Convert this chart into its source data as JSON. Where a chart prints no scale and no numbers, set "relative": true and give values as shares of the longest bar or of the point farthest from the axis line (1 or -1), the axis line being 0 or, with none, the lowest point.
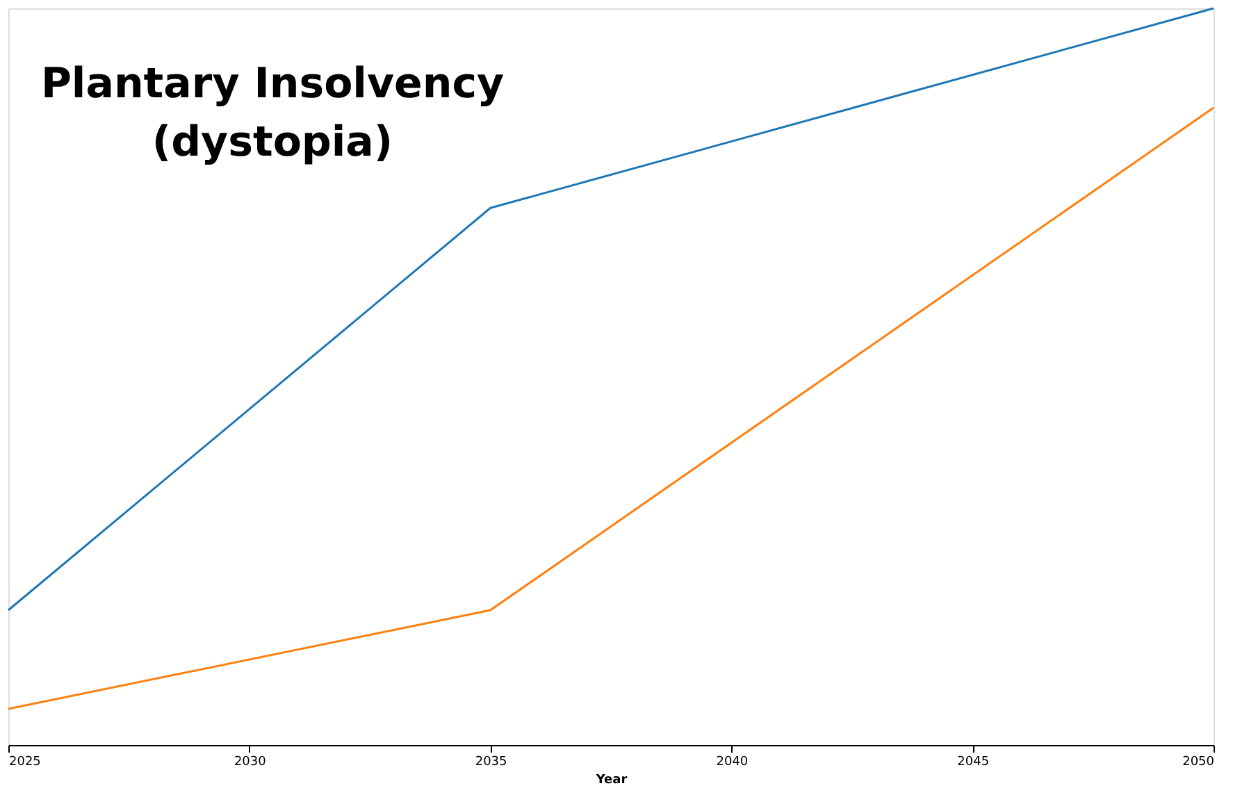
{
  "chart_data": {
    "type": "line",
    "title": "Plantary Insolvency\n(dystopia)",
    "xlabel": "Year",
    "relative": true,
    "x": [
      2025,
      2035,
      2050
    ],
    "xlim": [
      2025,
      2050
    ],
    "xticks": [
      2025,
      2030,
      2035,
      2040,
      2045,
      2050
    ],
    "series": [
      {
        "color": "#1f77b4",
        "values": [
          0.183,
          0.729,
          1
        ]
      },
      {
        "color": "#ff7f0e",
        "values": [
          0.049,
          0.183,
          0.865
        ]
      }
    ],
    "grid": false,
    "legend": false,
    "marker": "none",
    "line_style": "solid"
  }
}
